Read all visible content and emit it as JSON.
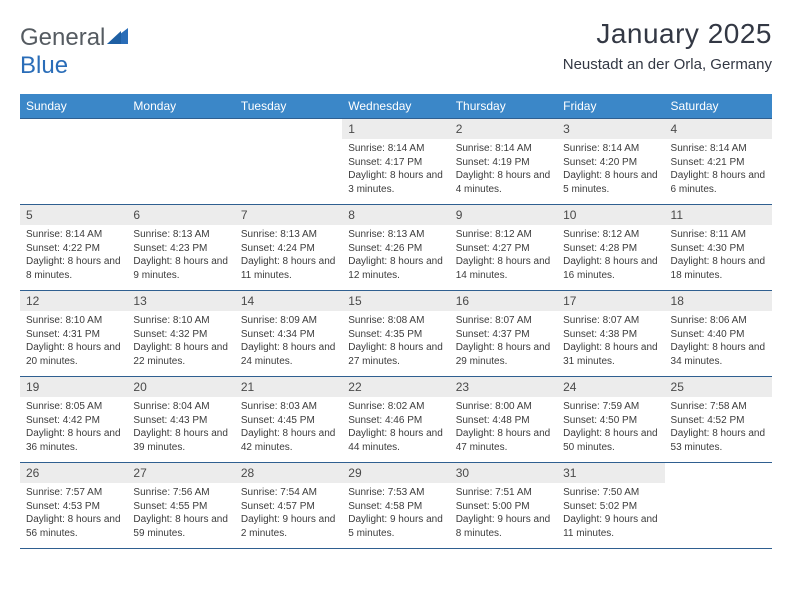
{
  "brand": {
    "part1": "General",
    "part2": "Blue"
  },
  "title": "January 2025",
  "location": "Neustadt an der Orla, Germany",
  "colors": {
    "header_bg": "#3b87c8",
    "header_text": "#ffffff",
    "row_border": "#2f5f90",
    "daynum_bg": "#ececec",
    "body_text": "#3c3c3c",
    "brand_gray": "#555b61",
    "brand_blue": "#2a6db8",
    "background": "#ffffff"
  },
  "typography": {
    "title_fontsize_pt": 21,
    "location_fontsize_pt": 11,
    "weekday_fontsize_pt": 9,
    "cell_fontsize_pt": 7.5
  },
  "weekdays": [
    "Sunday",
    "Monday",
    "Tuesday",
    "Wednesday",
    "Thursday",
    "Friday",
    "Saturday"
  ],
  "weeks": [
    [
      null,
      null,
      null,
      {
        "d": "1",
        "sr": "8:14 AM",
        "ss": "4:17 PM",
        "dh": 8,
        "dm": 3
      },
      {
        "d": "2",
        "sr": "8:14 AM",
        "ss": "4:19 PM",
        "dh": 8,
        "dm": 4
      },
      {
        "d": "3",
        "sr": "8:14 AM",
        "ss": "4:20 PM",
        "dh": 8,
        "dm": 5
      },
      {
        "d": "4",
        "sr": "8:14 AM",
        "ss": "4:21 PM",
        "dh": 8,
        "dm": 6
      }
    ],
    [
      {
        "d": "5",
        "sr": "8:14 AM",
        "ss": "4:22 PM",
        "dh": 8,
        "dm": 8
      },
      {
        "d": "6",
        "sr": "8:13 AM",
        "ss": "4:23 PM",
        "dh": 8,
        "dm": 9
      },
      {
        "d": "7",
        "sr": "8:13 AM",
        "ss": "4:24 PM",
        "dh": 8,
        "dm": 11
      },
      {
        "d": "8",
        "sr": "8:13 AM",
        "ss": "4:26 PM",
        "dh": 8,
        "dm": 12
      },
      {
        "d": "9",
        "sr": "8:12 AM",
        "ss": "4:27 PM",
        "dh": 8,
        "dm": 14
      },
      {
        "d": "10",
        "sr": "8:12 AM",
        "ss": "4:28 PM",
        "dh": 8,
        "dm": 16
      },
      {
        "d": "11",
        "sr": "8:11 AM",
        "ss": "4:30 PM",
        "dh": 8,
        "dm": 18
      }
    ],
    [
      {
        "d": "12",
        "sr": "8:10 AM",
        "ss": "4:31 PM",
        "dh": 8,
        "dm": 20
      },
      {
        "d": "13",
        "sr": "8:10 AM",
        "ss": "4:32 PM",
        "dh": 8,
        "dm": 22
      },
      {
        "d": "14",
        "sr": "8:09 AM",
        "ss": "4:34 PM",
        "dh": 8,
        "dm": 24
      },
      {
        "d": "15",
        "sr": "8:08 AM",
        "ss": "4:35 PM",
        "dh": 8,
        "dm": 27
      },
      {
        "d": "16",
        "sr": "8:07 AM",
        "ss": "4:37 PM",
        "dh": 8,
        "dm": 29
      },
      {
        "d": "17",
        "sr": "8:07 AM",
        "ss": "4:38 PM",
        "dh": 8,
        "dm": 31
      },
      {
        "d": "18",
        "sr": "8:06 AM",
        "ss": "4:40 PM",
        "dh": 8,
        "dm": 34
      }
    ],
    [
      {
        "d": "19",
        "sr": "8:05 AM",
        "ss": "4:42 PM",
        "dh": 8,
        "dm": 36
      },
      {
        "d": "20",
        "sr": "8:04 AM",
        "ss": "4:43 PM",
        "dh": 8,
        "dm": 39
      },
      {
        "d": "21",
        "sr": "8:03 AM",
        "ss": "4:45 PM",
        "dh": 8,
        "dm": 42
      },
      {
        "d": "22",
        "sr": "8:02 AM",
        "ss": "4:46 PM",
        "dh": 8,
        "dm": 44
      },
      {
        "d": "23",
        "sr": "8:00 AM",
        "ss": "4:48 PM",
        "dh": 8,
        "dm": 47
      },
      {
        "d": "24",
        "sr": "7:59 AM",
        "ss": "4:50 PM",
        "dh": 8,
        "dm": 50
      },
      {
        "d": "25",
        "sr": "7:58 AM",
        "ss": "4:52 PM",
        "dh": 8,
        "dm": 53
      }
    ],
    [
      {
        "d": "26",
        "sr": "7:57 AM",
        "ss": "4:53 PM",
        "dh": 8,
        "dm": 56
      },
      {
        "d": "27",
        "sr": "7:56 AM",
        "ss": "4:55 PM",
        "dh": 8,
        "dm": 59
      },
      {
        "d": "28",
        "sr": "7:54 AM",
        "ss": "4:57 PM",
        "dh": 9,
        "dm": 2
      },
      {
        "d": "29",
        "sr": "7:53 AM",
        "ss": "4:58 PM",
        "dh": 9,
        "dm": 5
      },
      {
        "d": "30",
        "sr": "7:51 AM",
        "ss": "5:00 PM",
        "dh": 9,
        "dm": 8
      },
      {
        "d": "31",
        "sr": "7:50 AM",
        "ss": "5:02 PM",
        "dh": 9,
        "dm": 11
      },
      null
    ]
  ]
}
